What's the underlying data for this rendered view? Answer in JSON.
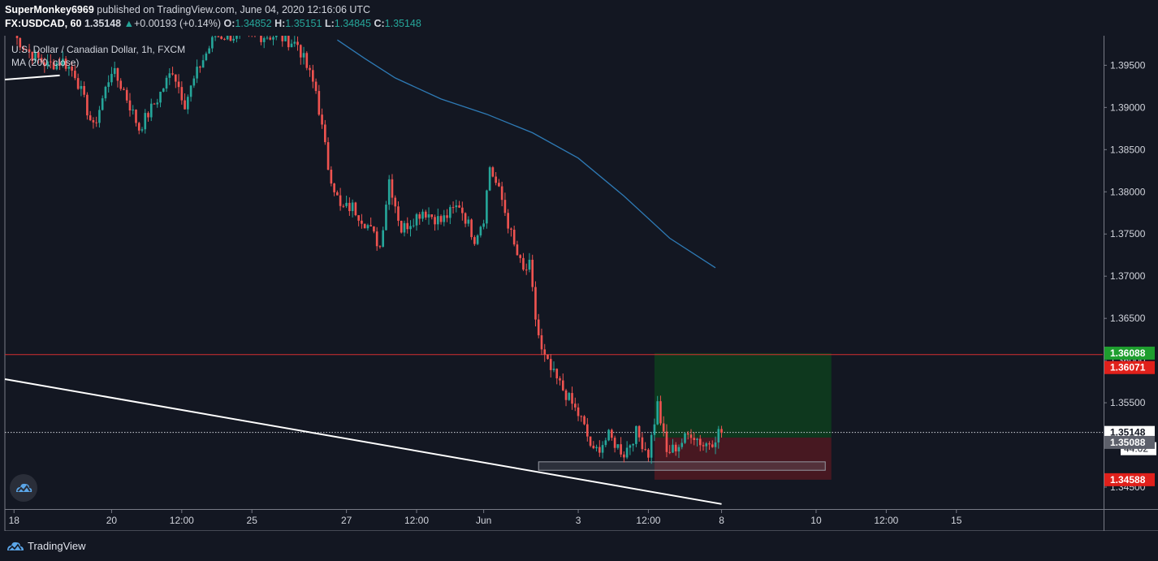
{
  "header": {
    "publisher": "SuperMonkey6969",
    "published_text": " published on TradingView.com, June 04, 2020 12:16:06 UTC",
    "symbol": "FX:USDCAD, 60",
    "last": "1.35148",
    "change_arrow": "▲",
    "change": "+0.00193 (+0.14%)",
    "open_label": "O:",
    "open": "1.34852",
    "high_label": "H:",
    "high": "1.35151",
    "low_label": "L:",
    "low": "1.34845",
    "close_label": "C:",
    "close": "1.35148"
  },
  "legend": {
    "instrument": "U.S. Dollar / Canadian Dollar, 1h, FXCM",
    "indicator": "MA (200, close)"
  },
  "footer": {
    "brand": "TradingView"
  },
  "colors": {
    "background": "#131722",
    "up": "#26a69a",
    "down": "#ef5350",
    "ma": "#2e7ab5",
    "resistance": "#d32f2f",
    "target_zone": "#0e3a1f",
    "stop_zone": "#4a1822",
    "target_tag": "#1e9e2e",
    "stop_tag": "#e0201b",
    "entry_tag": "#5d606b"
  },
  "chart_data": {
    "type": "candlestick",
    "ylim": [
      1.3425,
      1.3985
    ],
    "y_ticks": [
      "1.39500",
      "1.39000",
      "1.38500",
      "1.38000",
      "1.37500",
      "1.37000",
      "1.36500",
      "1.36000",
      "1.35500",
      "1.35000",
      "1.34500"
    ],
    "y_tick_values": [
      1.395,
      1.39,
      1.385,
      1.38,
      1.375,
      1.37,
      1.365,
      1.36,
      1.355,
      1.35,
      1.345
    ],
    "x_labels": [
      "18",
      "20",
      "12:00",
      "25",
      "27",
      "12:00",
      "Jun",
      "3",
      "12:00",
      "8",
      "10",
      "12:00",
      "15"
    ],
    "x_label_bars": [
      0,
      32,
      55,
      78,
      109,
      132,
      154,
      185,
      208,
      232,
      263,
      286,
      309
    ],
    "price_levels": {
      "target": {
        "label": "1.36088",
        "value": 1.36088
      },
      "resistance": {
        "label": "1.36071",
        "value": 1.36071
      },
      "current": {
        "label": "1.35148",
        "value": 1.35148
      },
      "countdown": "44:02",
      "entry": {
        "label": "1.35088",
        "value": 1.35088
      },
      "stop": {
        "label": "1.34588",
        "value": 1.34588
      }
    },
    "support_zone": {
      "from_bar": 172,
      "to_bar": 266,
      "top": 1.348,
      "bottom": 1.347
    },
    "position": {
      "from_bar": 210,
      "to_bar": 268,
      "entry": 1.35088,
      "target": 1.36088,
      "stop": 1.34588
    },
    "anchors": [
      {
        "bar": 0,
        "price": 1.3985
      },
      {
        "bar": 6,
        "price": 1.3962
      },
      {
        "bar": 11,
        "price": 1.395
      },
      {
        "bar": 16,
        "price": 1.3955
      },
      {
        "bar": 20,
        "price": 1.394
      },
      {
        "bar": 26,
        "price": 1.3875
      },
      {
        "bar": 32,
        "price": 1.3945
      },
      {
        "bar": 36,
        "price": 1.392
      },
      {
        "bar": 41,
        "price": 1.3875
      },
      {
        "bar": 47,
        "price": 1.391
      },
      {
        "bar": 52,
        "price": 1.3945
      },
      {
        "bar": 56,
        "price": 1.3905
      },
      {
        "bar": 61,
        "price": 1.395
      },
      {
        "bar": 66,
        "price": 1.3985
      },
      {
        "bar": 86,
        "price": 1.3985
      },
      {
        "bar": 93,
        "price": 1.3975
      },
      {
        "bar": 99,
        "price": 1.392
      },
      {
        "bar": 103,
        "price": 1.383
      },
      {
        "bar": 107,
        "price": 1.378
      },
      {
        "bar": 111,
        "price": 1.3782
      },
      {
        "bar": 116,
        "price": 1.376
      },
      {
        "bar": 120,
        "price": 1.3735
      },
      {
        "bar": 123,
        "price": 1.3815
      },
      {
        "bar": 127,
        "price": 1.3755
      },
      {
        "bar": 134,
        "price": 1.3778
      },
      {
        "bar": 140,
        "price": 1.3765
      },
      {
        "bar": 146,
        "price": 1.3785
      },
      {
        "bar": 151,
        "price": 1.3745
      },
      {
        "bar": 154,
        "price": 1.377
      },
      {
        "bar": 156,
        "price": 1.383
      },
      {
        "bar": 160,
        "price": 1.379
      },
      {
        "bar": 164,
        "price": 1.3735
      },
      {
        "bar": 167,
        "price": 1.3705
      },
      {
        "bar": 169,
        "price": 1.3712
      },
      {
        "bar": 171,
        "price": 1.365
      },
      {
        "bar": 173,
        "price": 1.361
      },
      {
        "bar": 176,
        "price": 1.3588
      },
      {
        "bar": 181,
        "price": 1.356
      },
      {
        "bar": 186,
        "price": 1.353
      },
      {
        "bar": 190,
        "price": 1.349
      },
      {
        "bar": 195,
        "price": 1.351
      },
      {
        "bar": 200,
        "price": 1.349
      },
      {
        "bar": 204,
        "price": 1.3515
      },
      {
        "bar": 208,
        "price": 1.349
      },
      {
        "bar": 211,
        "price": 1.3548
      },
      {
        "bar": 214,
        "price": 1.349
      },
      {
        "bar": 218,
        "price": 1.35
      },
      {
        "bar": 222,
        "price": 1.3515
      },
      {
        "bar": 226,
        "price": 1.35
      },
      {
        "bar": 229,
        "price": 1.3505
      },
      {
        "bar": 231,
        "price": 1.3515
      }
    ],
    "ma_points": [
      {
        "bar": 106,
        "price": 1.398
      },
      {
        "bar": 115,
        "price": 1.3958
      },
      {
        "bar": 125,
        "price": 1.3935
      },
      {
        "bar": 140,
        "price": 1.391
      },
      {
        "bar": 155,
        "price": 1.3892
      },
      {
        "bar": 170,
        "price": 1.387
      },
      {
        "bar": 185,
        "price": 1.384
      },
      {
        "bar": 200,
        "price": 1.3795
      },
      {
        "bar": 215,
        "price": 1.3745
      },
      {
        "bar": 230,
        "price": 1.371
      }
    ],
    "trendlines": [
      {
        "from_bar": -3,
        "from_price": 1.3933,
        "to_bar": 15,
        "to_price": 1.3938
      },
      {
        "from_bar": -3,
        "from_price": 1.3578,
        "to_bar": 232,
        "to_price": 1.343
      }
    ],
    "bar_count": 232,
    "bar_window": [
      -3,
      357
    ]
  }
}
